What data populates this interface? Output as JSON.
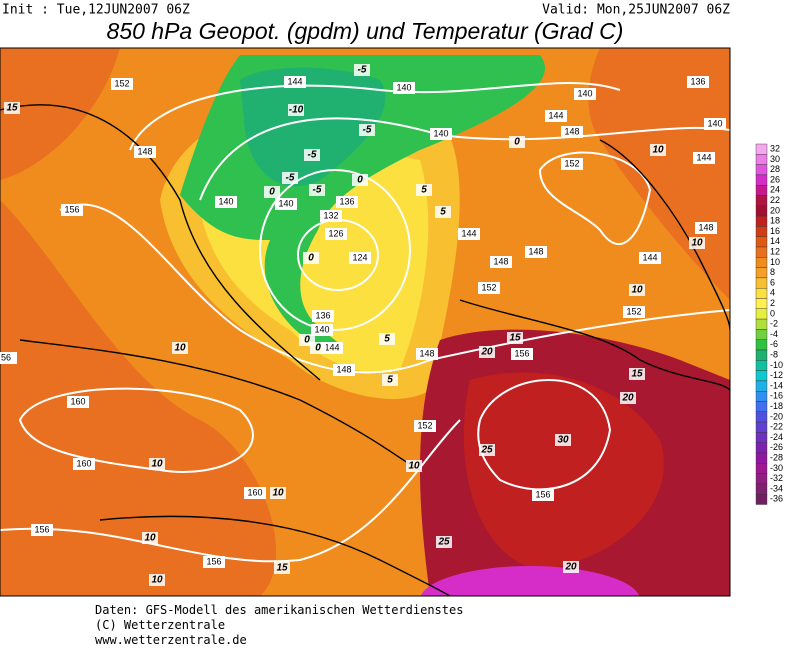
{
  "header": {
    "init": "Init : Tue,12JUN2007 06Z",
    "valid": "Valid: Mon,25JUN2007 06Z",
    "title": "850 hPa Geopot. (gpdm) und Temperatur (Grad C)"
  },
  "map": {
    "height_labels": [
      "152",
      "144",
      "140",
      "140",
      "136",
      "144",
      "148",
      "140",
      "140",
      "152",
      "144",
      "148",
      "156",
      "140",
      "140",
      "136",
      "132",
      "126",
      "124",
      "144",
      "148",
      "148",
      "144",
      "148",
      "152",
      "152",
      "136",
      "140",
      "144",
      "148",
      "148",
      "156",
      "56",
      "160",
      "152",
      "160",
      "160",
      "156",
      "156",
      "156"
    ],
    "temperature_labels": [
      "15",
      "-5",
      "-10",
      "-5",
      "-5",
      "0",
      "0",
      "-5",
      "-5",
      "0",
      "0",
      "5",
      "10",
      "10",
      "10",
      "5",
      "0",
      "0",
      "10",
      "15",
      "20",
      "15",
      "20",
      "5",
      "10",
      "10",
      "10",
      "25",
      "30",
      "10",
      "25",
      "15",
      "20",
      "10",
      "5"
    ]
  },
  "legend": {
    "levels": [
      32,
      30,
      28,
      26,
      24,
      22,
      20,
      18,
      16,
      14,
      12,
      10,
      8,
      6,
      4,
      2,
      0,
      -2,
      -4,
      -6,
      -8,
      -10,
      -12,
      -14,
      -16,
      -18,
      -20,
      -22,
      -24,
      -26,
      -28,
      -30,
      -32,
      -34,
      -36
    ],
    "colors": [
      "#f4a8f0",
      "#ec7ee8",
      "#e254e0",
      "#d62cc8",
      "#c81890",
      "#b01444",
      "#a01030",
      "#c02020",
      "#d03c14",
      "#e05a14",
      "#e87020",
      "#f08c1e",
      "#f4a028",
      "#f8c030",
      "#fce040",
      "#fff050",
      "#e4f040",
      "#b0e040",
      "#70d040",
      "#30c040",
      "#20b070",
      "#10c0a0",
      "#10c8d0",
      "#20b0e8",
      "#3090f0",
      "#4070f0",
      "#5050e0",
      "#6040d0",
      "#7030c0",
      "#8020b0",
      "#9018a0",
      "#a01890",
      "#902080",
      "#802070",
      "#702060"
    ]
  },
  "footer": {
    "lines": [
      "Daten: GFS-Modell des amerikanischen Wetterdienstes",
      "(C) Wetterzentrale",
      "www.wetterzentrale.de"
    ]
  }
}
